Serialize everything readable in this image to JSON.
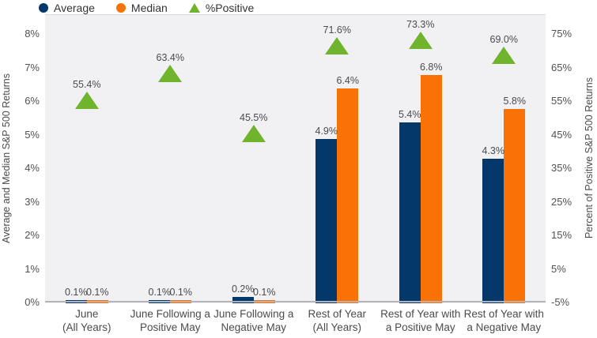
{
  "chart_data": {
    "type": "bar",
    "title": "",
    "legend": [
      {
        "label": "Average",
        "marker": "circle",
        "color": "#04386a"
      },
      {
        "label": "Median",
        "marker": "circle",
        "color": "#f97206"
      },
      {
        "label": "%Positive",
        "marker": "triangle",
        "color": "#6fb42c"
      }
    ],
    "categories": [
      {
        "line1": "June",
        "line2": "(All Years)"
      },
      {
        "line1": "June Following a",
        "line2": "Positive May"
      },
      {
        "line1": "June Following a",
        "line2": "Negative May"
      },
      {
        "line1": "Rest of Year",
        "line2": "(All Years)"
      },
      {
        "line1": "Rest of Year with",
        "line2": "a Positive May"
      },
      {
        "line1": "Rest of Year with",
        "line2": "a Negative May"
      }
    ],
    "series": [
      {
        "name": "Average",
        "type": "bar",
        "axis": "left",
        "color": "#04386a",
        "values": [
          0.1,
          0.1,
          0.2,
          4.9,
          5.4,
          4.3
        ],
        "labels": [
          "0.1%",
          "0.1%",
          "0.2%",
          "4.9%",
          "5.4%",
          "4.3%"
        ]
      },
      {
        "name": "Median",
        "type": "bar",
        "axis": "left",
        "color": "#f97206",
        "values": [
          0.1,
          0.1,
          0.1,
          6.4,
          6.8,
          5.8
        ],
        "labels": [
          "0.1%",
          "0.1%",
          "0.1%",
          "6.4%",
          "6.8%",
          "5.8%"
        ]
      },
      {
        "name": "%Positive",
        "type": "triangle-marker",
        "axis": "right",
        "color": "#6fb42c",
        "values": [
          55.4,
          63.4,
          45.5,
          71.6,
          73.3,
          69.0
        ],
        "labels": [
          "55.4%",
          "63.4%",
          "45.5%",
          "71.6%",
          "73.3%",
          "69.0%"
        ]
      }
    ],
    "left_axis": {
      "label": "Average and Median S&P 500 Returns",
      "min": 0,
      "max": 8,
      "tick_step": 1,
      "ticks": [
        "0%",
        "1%",
        "2%",
        "3%",
        "4%",
        "5%",
        "6%",
        "7%",
        "8%"
      ]
    },
    "right_axis": {
      "label": "Percent of Positive S&P 500 Returns",
      "min": -5,
      "max": 75,
      "tick_step": 10,
      "ticks": [
        "-5%",
        "5%",
        "15%",
        "25%",
        "35%",
        "45%",
        "55%",
        "65%",
        "75%"
      ]
    },
    "grid": "off",
    "legend_position": "top-left",
    "plot_background": "#f1f1f4"
  }
}
